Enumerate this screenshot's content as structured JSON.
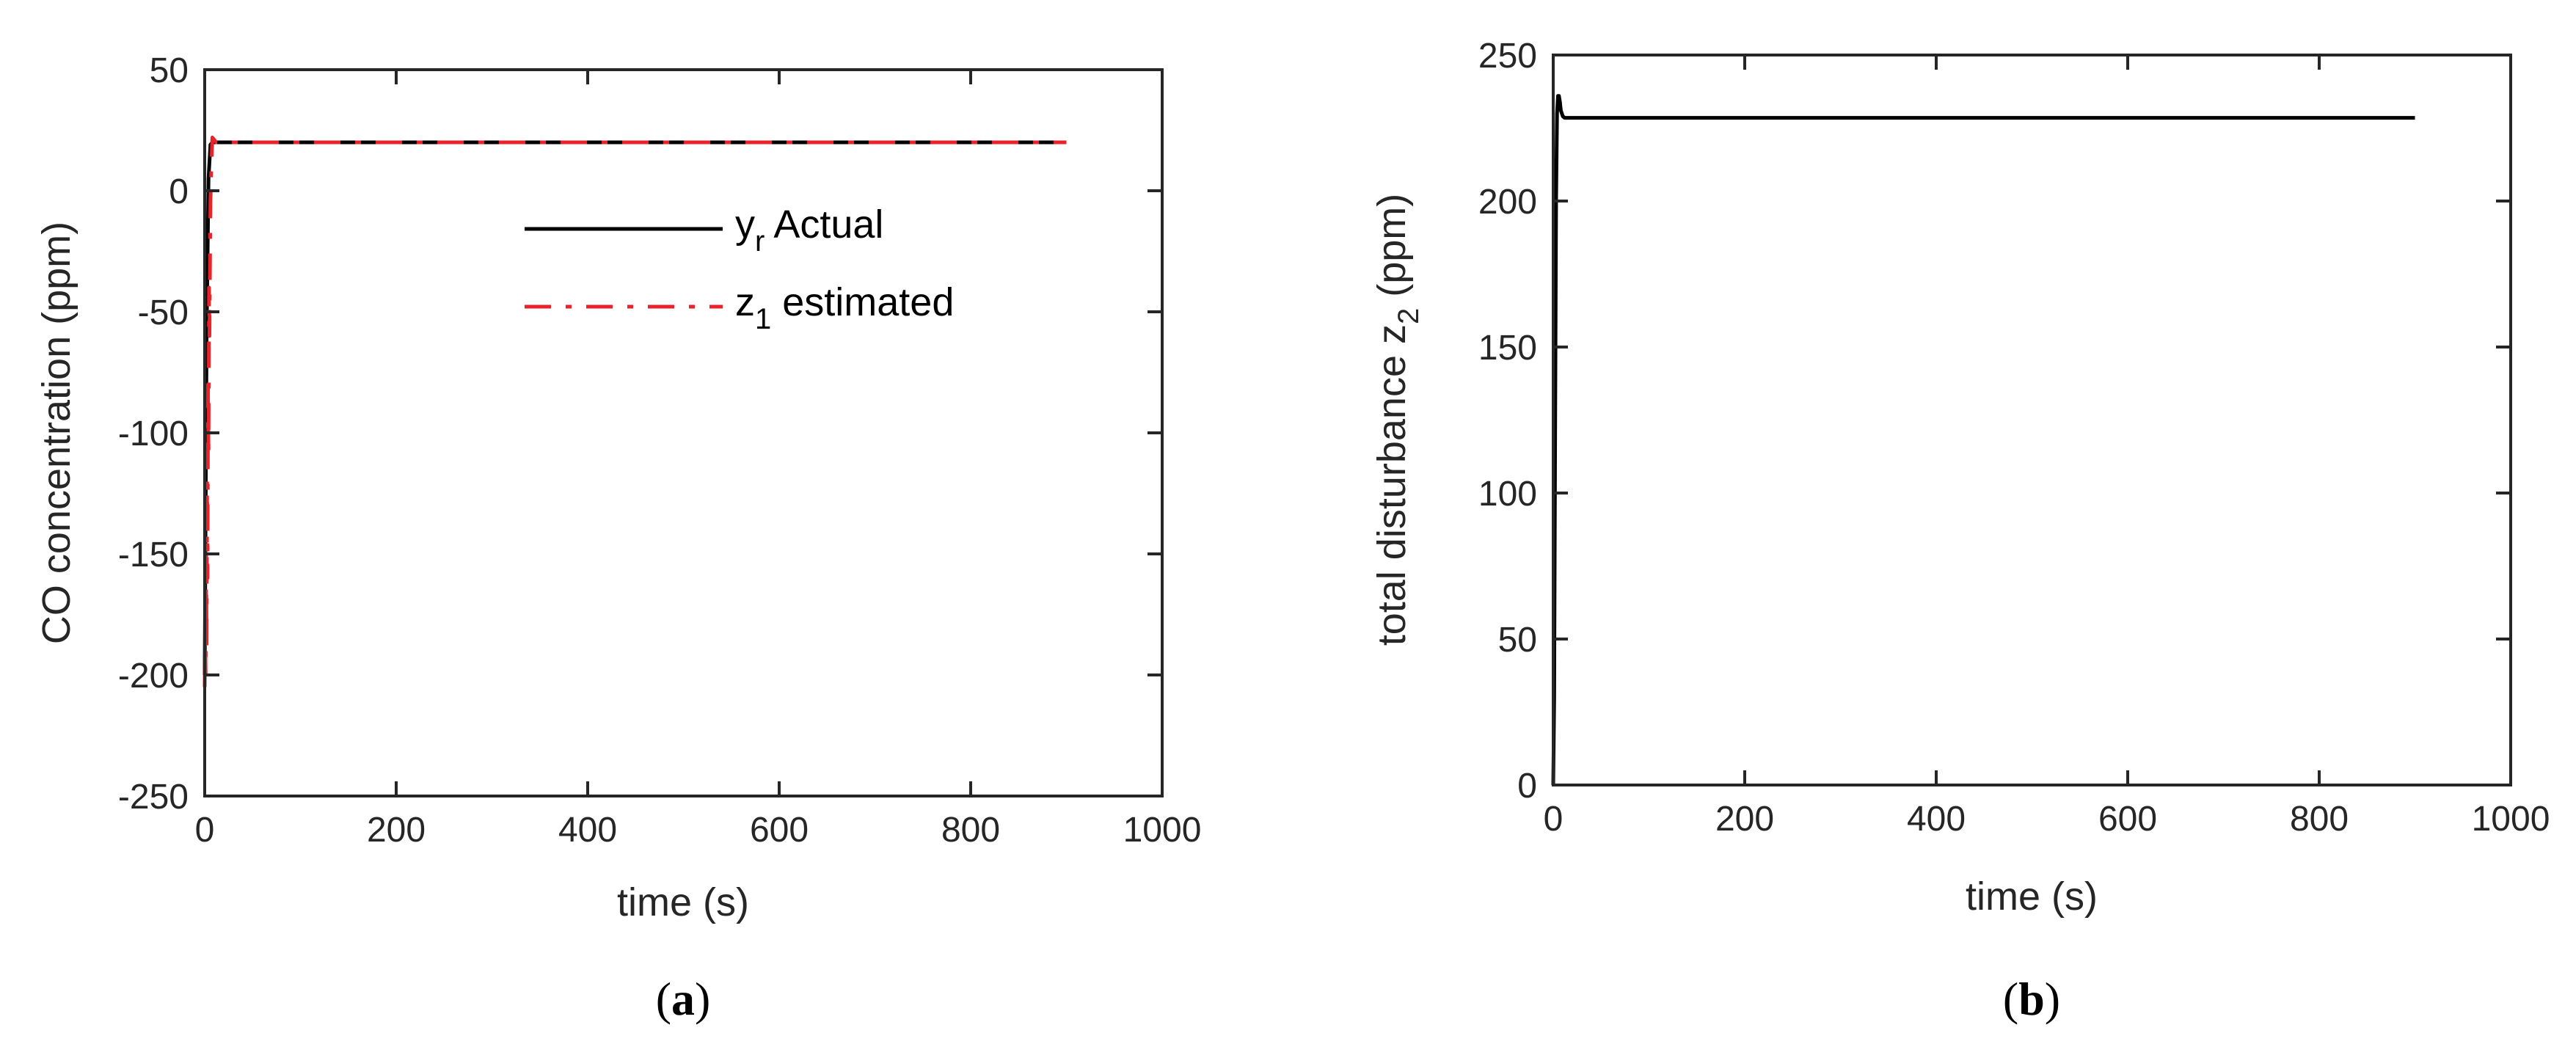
{
  "chart_data": [
    {
      "type": "line",
      "panel": "a",
      "caption": {
        "open": "(",
        "letter": "a",
        "close": ")"
      },
      "xlabel": "time (s)",
      "ylabel": "CO concentration (ppm)",
      "xlim": [
        0,
        1000
      ],
      "ylim": [
        -250,
        50
      ],
      "xticks": [
        0,
        200,
        400,
        600,
        800,
        1000
      ],
      "yticks": [
        -250,
        -200,
        -150,
        -100,
        -50,
        0,
        50
      ],
      "grid": false,
      "legend_position": "top-right",
      "series": [
        {
          "id": "actual",
          "legend": {
            "base": "y",
            "sub": "r",
            "rest": " Actual"
          },
          "color": "#000000",
          "style": "solid",
          "x": [
            0,
            2,
            4,
            6,
            8,
            900
          ],
          "y": [
            -200,
            -60,
            5,
            19,
            20,
            20
          ]
        },
        {
          "id": "estimated",
          "legend": {
            "base": "z",
            "sub": "1",
            "rest": " estimated"
          },
          "color": "#e8232a",
          "style": "dashed",
          "x": [
            0,
            0.5,
            1,
            1.5,
            2,
            2.5,
            3,
            3.5,
            4,
            4.5,
            5,
            6,
            7,
            8,
            10,
            12,
            900
          ],
          "y": [
            -205,
            -185,
            -200,
            -150,
            -190,
            -120,
            -160,
            -80,
            -110,
            -40,
            -60,
            -5,
            10,
            22,
            21,
            20,
            20
          ]
        }
      ]
    },
    {
      "type": "line",
      "panel": "b",
      "caption": {
        "open": "(",
        "letter": "b",
        "close": ")"
      },
      "xlabel": "time (s)",
      "ylabel": {
        "base": "total disturbance z",
        "sub": "2",
        "rest": " (ppm)"
      },
      "xlim": [
        0,
        1000
      ],
      "ylim": [
        0,
        250
      ],
      "xticks": [
        0,
        200,
        400,
        600,
        800,
        1000
      ],
      "yticks": [
        0,
        50,
        100,
        150,
        200,
        250
      ],
      "grid": false,
      "legend_position": "none",
      "series": [
        {
          "id": "disturbance",
          "color": "#000000",
          "style": "solid",
          "x": [
            0,
            1,
            2,
            3,
            4,
            5,
            6,
            7,
            8,
            10,
            12,
            15,
            900
          ],
          "y": [
            0,
            30,
            120,
            200,
            230,
            236,
            236,
            234,
            231,
            229,
            228.5,
            228.5,
            228.5
          ]
        }
      ]
    }
  ]
}
